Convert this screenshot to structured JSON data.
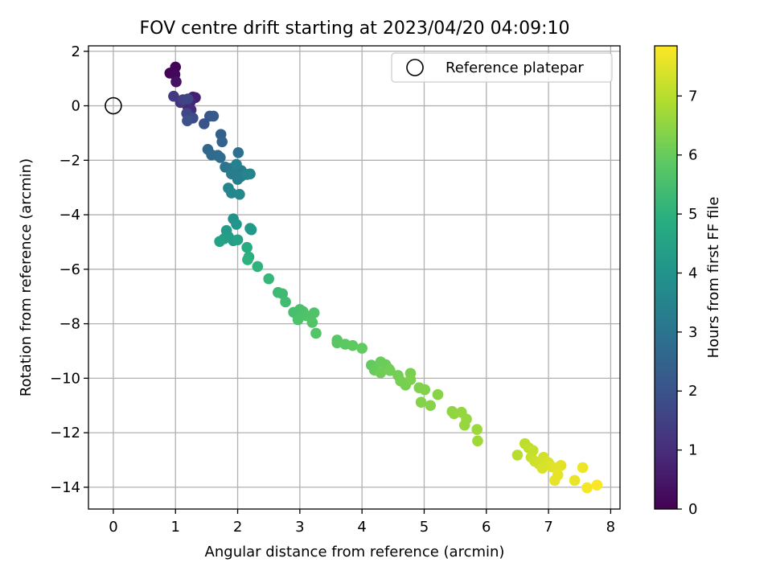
{
  "chart_data": {
    "type": "scatter",
    "title": "FOV centre drift starting at 2023/04/20 04:09:10",
    "xlabel": "Angular distance from reference (arcmin)",
    "ylabel": "Rotation from reference (arcmin)",
    "xlim": [
      -0.4,
      8.15
    ],
    "ylim": [
      -14.8,
      2.2
    ],
    "xticks": [
      0,
      1,
      2,
      3,
      4,
      5,
      6,
      7,
      8
    ],
    "yticks": [
      -14,
      -12,
      -10,
      -8,
      -6,
      -4,
      -2,
      0,
      2
    ],
    "grid": true,
    "legend": {
      "placement": "top-right",
      "entries": [
        "Reference platepar"
      ]
    },
    "reference_point": {
      "x": 0,
      "y": 0,
      "label": "Reference platepar"
    },
    "colorbar": {
      "label": "Hours from first FF file",
      "colormap": "viridis",
      "range": [
        0,
        7.85
      ],
      "ticks": [
        0,
        1,
        2,
        3,
        4,
        5,
        6,
        7
      ]
    },
    "points": [
      [
        0.91,
        1.2,
        0.05
      ],
      [
        1.0,
        1.42,
        0.1
      ],
      [
        0.99,
        1.15,
        0.15
      ],
      [
        1.01,
        0.88,
        0.35
      ],
      [
        1.28,
        0.32,
        0.6
      ],
      [
        1.32,
        0.3,
        0.7
      ],
      [
        1.24,
        0.15,
        0.8
      ],
      [
        1.2,
        -0.05,
        0.9
      ],
      [
        1.25,
        -0.15,
        0.95
      ],
      [
        1.08,
        0.12,
        1.1
      ],
      [
        0.97,
        0.35,
        1.3
      ],
      [
        1.12,
        0.22,
        1.5
      ],
      [
        1.2,
        0.25,
        1.6
      ],
      [
        1.18,
        -0.28,
        1.7
      ],
      [
        1.28,
        -0.45,
        1.8
      ],
      [
        1.19,
        -0.55,
        1.9
      ],
      [
        1.46,
        -0.66,
        2.0
      ],
      [
        1.55,
        -0.38,
        2.1
      ],
      [
        1.61,
        -0.38,
        2.2
      ],
      [
        1.73,
        -1.05,
        2.4
      ],
      [
        1.75,
        -1.32,
        2.5
      ],
      [
        1.52,
        -1.6,
        2.6
      ],
      [
        1.58,
        -1.8,
        2.7
      ],
      [
        1.68,
        -1.82,
        2.75
      ],
      [
        1.72,
        -1.9,
        2.8
      ],
      [
        2.01,
        -1.72,
        2.9
      ],
      [
        1.8,
        -2.25,
        3.0
      ],
      [
        1.88,
        -2.3,
        3.1
      ],
      [
        1.98,
        -2.25,
        3.15
      ],
      [
        2.06,
        -2.38,
        3.2
      ],
      [
        1.9,
        -2.5,
        3.25
      ],
      [
        2.0,
        -2.7,
        3.3
      ],
      [
        2.05,
        -2.6,
        3.35
      ],
      [
        1.98,
        -2.15,
        3.4
      ],
      [
        2.2,
        -2.5,
        3.45
      ],
      [
        2.15,
        -2.52,
        3.5
      ],
      [
        1.85,
        -3.02,
        3.55
      ],
      [
        1.9,
        -3.2,
        3.6
      ],
      [
        2.03,
        -3.25,
        3.65
      ],
      [
        1.93,
        -4.15,
        4.0
      ],
      [
        1.98,
        -4.35,
        4.1
      ],
      [
        2.2,
        -4.5,
        4.15
      ],
      [
        2.22,
        -4.55,
        4.2
      ],
      [
        1.82,
        -4.58,
        4.25
      ],
      [
        1.85,
        -4.8,
        4.3
      ],
      [
        1.93,
        -4.95,
        4.35
      ],
      [
        1.78,
        -4.88,
        4.4
      ],
      [
        2.0,
        -4.92,
        4.45
      ],
      [
        1.71,
        -4.98,
        4.5
      ],
      [
        2.15,
        -5.2,
        4.8
      ],
      [
        2.18,
        -5.55,
        4.9
      ],
      [
        2.16,
        -5.65,
        5.0
      ],
      [
        2.32,
        -5.9,
        5.05
      ],
      [
        2.5,
        -6.35,
        5.2
      ],
      [
        2.65,
        -6.85,
        5.3
      ],
      [
        2.72,
        -6.9,
        5.35
      ],
      [
        2.77,
        -7.2,
        5.4
      ],
      [
        2.9,
        -7.58,
        5.45
      ],
      [
        3.0,
        -7.48,
        5.5
      ],
      [
        3.05,
        -7.55,
        5.55
      ],
      [
        2.97,
        -7.85,
        5.6
      ],
      [
        3.1,
        -7.7,
        5.62
      ],
      [
        3.23,
        -7.6,
        5.65
      ],
      [
        3.2,
        -7.95,
        5.68
      ],
      [
        3.26,
        -8.35,
        5.7
      ],
      [
        3.6,
        -8.6,
        5.8
      ],
      [
        3.6,
        -8.7,
        5.82
      ],
      [
        3.73,
        -8.75,
        5.85
      ],
      [
        3.85,
        -8.8,
        5.9
      ],
      [
        4.0,
        -8.9,
        5.92
      ],
      [
        4.15,
        -9.52,
        5.95
      ],
      [
        4.2,
        -9.7,
        6.0
      ],
      [
        4.3,
        -9.4,
        6.02
      ],
      [
        4.38,
        -9.5,
        6.05
      ],
      [
        4.43,
        -9.65,
        6.08
      ],
      [
        4.3,
        -9.8,
        6.1
      ],
      [
        4.45,
        -9.72,
        6.12
      ],
      [
        4.58,
        -9.9,
        6.15
      ],
      [
        4.62,
        -10.1,
        6.18
      ],
      [
        4.7,
        -10.25,
        6.2
      ],
      [
        4.78,
        -9.82,
        6.22
      ],
      [
        4.78,
        -10.05,
        6.25
      ],
      [
        4.92,
        -10.35,
        6.3
      ],
      [
        5.01,
        -10.42,
        6.32
      ],
      [
        4.95,
        -10.88,
        6.35
      ],
      [
        5.1,
        -11.0,
        6.38
      ],
      [
        5.22,
        -10.6,
        6.4
      ],
      [
        5.45,
        -11.22,
        6.5
      ],
      [
        5.48,
        -11.3,
        6.52
      ],
      [
        5.6,
        -11.25,
        6.55
      ],
      [
        5.68,
        -11.5,
        6.58
      ],
      [
        5.65,
        -11.72,
        6.6
      ],
      [
        5.85,
        -11.88,
        6.65
      ],
      [
        5.86,
        -12.3,
        6.7
      ],
      [
        6.5,
        -12.82,
        7.0
      ],
      [
        6.62,
        -12.4,
        7.05
      ],
      [
        6.68,
        -12.55,
        7.1
      ],
      [
        6.75,
        -12.65,
        7.15
      ],
      [
        6.72,
        -12.9,
        7.2
      ],
      [
        6.78,
        -13.05,
        7.25
      ],
      [
        6.85,
        -13.15,
        7.3
      ],
      [
        6.92,
        -12.9,
        7.35
      ],
      [
        6.9,
        -13.3,
        7.38
      ],
      [
        7.0,
        -13.1,
        7.4
      ],
      [
        7.05,
        -13.25,
        7.45
      ],
      [
        7.12,
        -13.3,
        7.5
      ],
      [
        7.2,
        -13.2,
        7.52
      ],
      [
        7.15,
        -13.55,
        7.55
      ],
      [
        7.1,
        -13.75,
        7.58
      ],
      [
        7.42,
        -13.75,
        7.62
      ],
      [
        7.55,
        -13.28,
        7.68
      ],
      [
        7.62,
        -14.02,
        7.75
      ],
      [
        7.78,
        -13.92,
        7.8
      ]
    ]
  }
}
